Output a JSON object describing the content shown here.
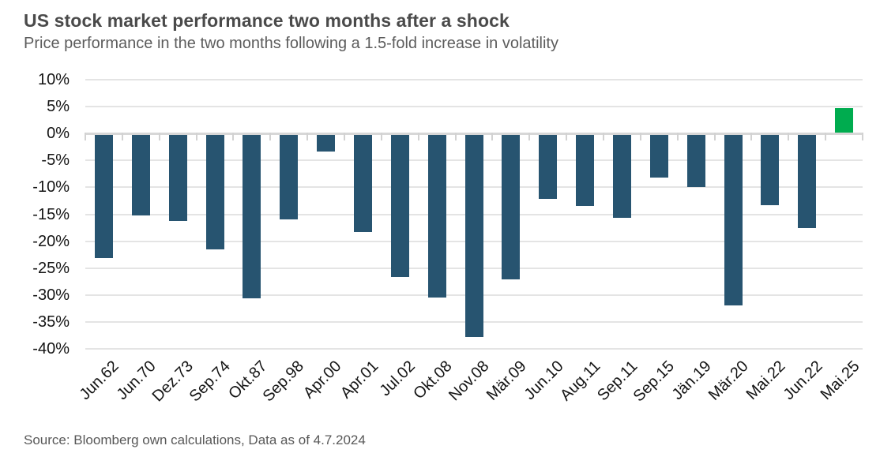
{
  "header": {
    "title": "US stock market performance two months after a shock",
    "subtitle": "Price performance in the two months following a 1.5-fold increase in volatility"
  },
  "footer": {
    "source": "Source: Bloomberg own calculations, Data as of 4.7.2024"
  },
  "colors": {
    "bar_negative": "#275470",
    "bar_positive": "#00AC4F",
    "gridline": "#e4e4e4",
    "zero_axis": "#d7d7d7",
    "title_text": "#4a4a4a",
    "subtitle_text": "#5c5c5c",
    "axis_text": "#141414",
    "source_text": "#585858",
    "background": "#ffffff"
  },
  "chart_data": {
    "type": "bar",
    "title": "US stock market performance two months after a shock",
    "subtitle": "Price performance in the two months following a 1.5-fold increase in volatility",
    "source": "Source: Bloomberg own calculations, Data as of 4.7.2024",
    "categories": [
      "Jun.62",
      "Jun.70",
      "Dez.73",
      "Sep.74",
      "Okt.87",
      "Sep.98",
      "Apr.00",
      "Apr.01",
      "Jul.02",
      "Okt.08",
      "Nov.08",
      "Mär.09",
      "Jun.10",
      "Aug.11",
      "Sep.11",
      "Sep.15",
      "Jän.19",
      "Mär.20",
      "Mai.22",
      "Jun.22",
      "Mai.25"
    ],
    "values": [
      -23.2,
      -15.2,
      -16.2,
      -21.6,
      -30.6,
      -16.0,
      -3.4,
      -18.3,
      -26.6,
      -30.4,
      -37.8,
      -27.1,
      -12.2,
      -13.4,
      -15.6,
      -8.2,
      -9.9,
      -31.9,
      -13.3,
      -17.6,
      4.7
    ],
    "value_unit": "%",
    "xlabel": "",
    "ylabel": "",
    "ylim": [
      -40,
      10
    ],
    "ytick_step": 5,
    "ytick_labels": [
      "10%",
      "5%",
      "0%",
      "-5%",
      "-10%",
      "-15%",
      "-20%",
      "-25%",
      "-30%",
      "-35%",
      "-40%"
    ],
    "grid": true,
    "legend_position": "none",
    "x_label_rotation_deg": 45,
    "bar_color_negative": "#275470",
    "bar_color_positive": "#00AC4F"
  }
}
